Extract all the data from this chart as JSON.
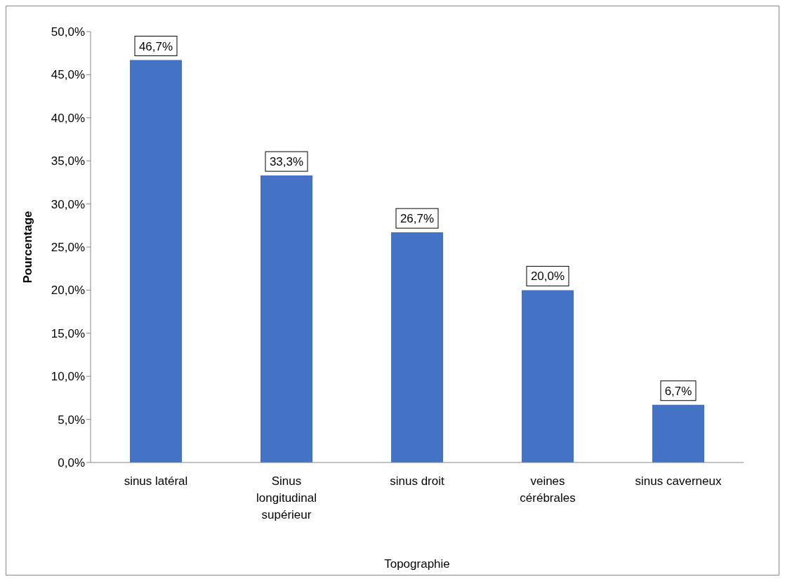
{
  "chart_data": {
    "type": "bar",
    "categories": [
      "sinus latéral",
      "Sinus longitudinal supérieur",
      "sinus droit",
      "veines cérébrales",
      "sinus caverneux"
    ],
    "values": [
      46.7,
      33.3,
      26.7,
      20.0,
      6.7
    ],
    "value_labels": [
      "46,7%",
      "33,3%",
      "26,7%",
      "20,0%",
      "6,7%"
    ],
    "color": "#4472c4",
    "ylim": [
      0,
      50
    ],
    "yticks": [
      {
        "value": 0,
        "label": "0,0%"
      },
      {
        "value": 5,
        "label": "5,0%"
      },
      {
        "value": 10,
        "label": "10,0%"
      },
      {
        "value": 15,
        "label": "15,0%"
      },
      {
        "value": 20,
        "label": "20,0%"
      },
      {
        "value": 25,
        "label": "25,0%"
      },
      {
        "value": 30,
        "label": "30,0%"
      },
      {
        "value": 35,
        "label": "35,0%"
      },
      {
        "value": 40,
        "label": "40,0%"
      },
      {
        "value": 45,
        "label": "45,0%"
      },
      {
        "value": 50,
        "label": "50,0%"
      }
    ],
    "xlabel": "Topographie",
    "ylabel": "Pourcentage",
    "grid": false,
    "legend": false
  }
}
